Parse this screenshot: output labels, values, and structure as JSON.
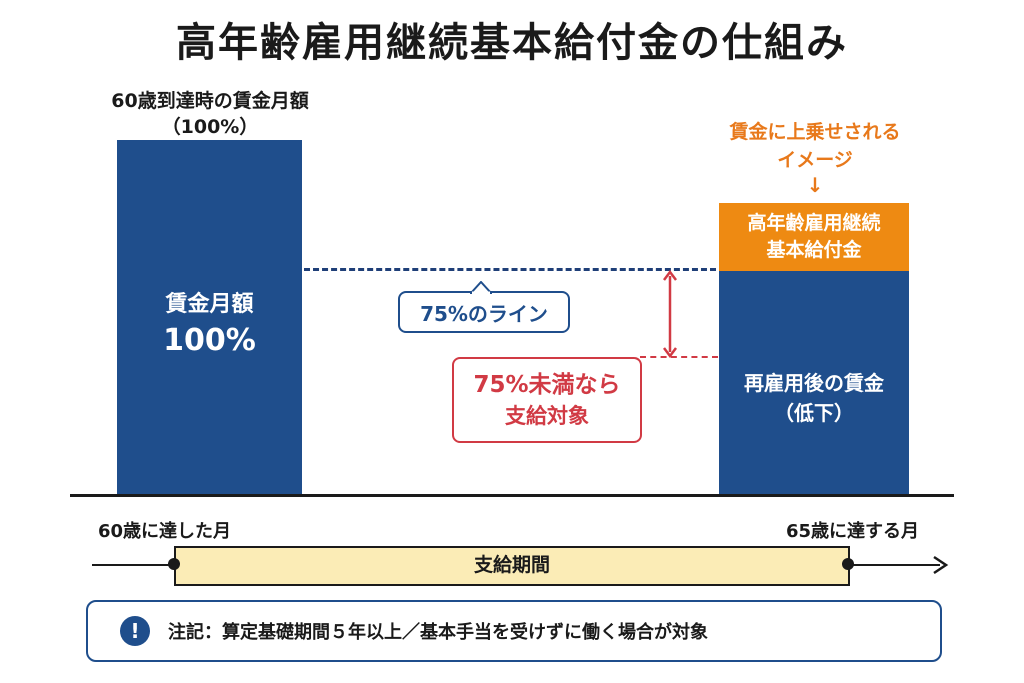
{
  "title": "高年齢雇用継続基本給付金の仕組み",
  "left_bar": {
    "top_label_line1": "60歳到達時の賃金月額",
    "top_label_line2": "（100%）",
    "inner_line1": "賃金月額",
    "inner_line2": "100%"
  },
  "right_bar": {
    "orange_caption_line1": "賃金に上乗せされる",
    "orange_caption_line2": "イメージ",
    "orange_caption_arrow": "↓",
    "benefit_line1": "高年齢雇用継続",
    "benefit_line2": "基本給付金",
    "wage_line1": "再雇用後の賃金",
    "wage_line2": "（低下）"
  },
  "line_75": {
    "label": "75%のライン"
  },
  "condition": {
    "line1": "75%未満なら",
    "line2": "支給対象"
  },
  "timeline": {
    "start_label": "60歳に達した月",
    "end_label": "65歳に達する月",
    "period_label": "支給期間"
  },
  "note": {
    "icon": "!",
    "text": "注記：算定基礎期間５年以上／基本手当を受けずに働く場合が対象"
  },
  "colors": {
    "bar_blue": "#1f4e8c",
    "benefit_orange": "#ee8a12",
    "caption_orange": "#e8791b",
    "condition_red": "#d13a44",
    "period_fill": "#fbecb6"
  }
}
